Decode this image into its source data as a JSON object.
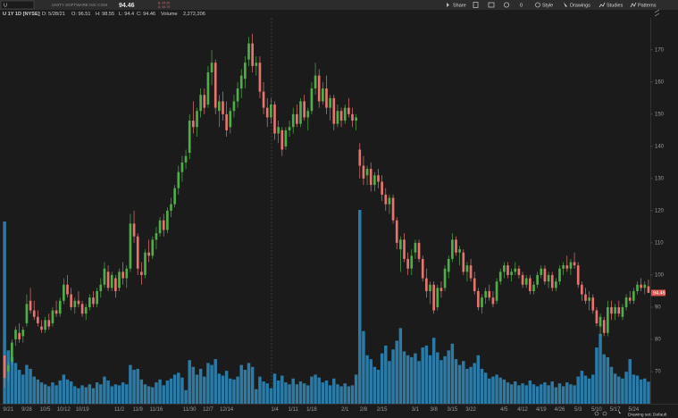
{
  "toolbar": {
    "symbol": "U",
    "company": "UNITY SOFTWARE INC COM",
    "bid": "B: 94.50",
    "ask": "A: 94.79",
    "count": "0",
    "buttons": [
      "Share",
      "Style",
      "Drawings",
      "Studies",
      "Patterns"
    ]
  },
  "footer": "Drawing set: Default",
  "chart_data": {
    "type": "candlestick",
    "title": "U 1Y 1D [NYSE]",
    "info": [
      "D: 5/28/21",
      "O: 96.51",
      "H: 98.55",
      "L: 94.4",
      "C: 94.46"
    ],
    "volume_label": "Volume",
    "volume_text": "2,272,206",
    "categories": [
      null,
      "9/21",
      null,
      null,
      null,
      null,
      "9/28",
      null,
      null,
      null,
      null,
      "10/5",
      null,
      null,
      null,
      null,
      "10/12",
      null,
      null,
      null,
      null,
      "10/19",
      null,
      null,
      null,
      null,
      null,
      null,
      null,
      null,
      null,
      "11/2",
      null,
      null,
      null,
      null,
      "11/9",
      null,
      null,
      null,
      null,
      "11/16",
      null,
      null,
      null,
      null,
      null,
      null,
      null,
      null,
      "11/30",
      null,
      null,
      null,
      null,
      "12/7",
      null,
      null,
      null,
      null,
      "12/14",
      null,
      null,
      null,
      null,
      null,
      null,
      null,
      null,
      null,
      null,
      null,
      null,
      "1/4",
      null,
      null,
      null,
      null,
      "1/11",
      null,
      null,
      null,
      null,
      "1/18",
      null,
      null,
      null,
      null,
      null,
      null,
      null,
      null,
      "2/1",
      null,
      null,
      null,
      null,
      "2/8",
      null,
      null,
      null,
      null,
      "2/15",
      null,
      null,
      null,
      null,
      null,
      null,
      null,
      null,
      "3/1",
      null,
      null,
      null,
      null,
      "3/8",
      null,
      null,
      null,
      null,
      "3/15",
      null,
      null,
      null,
      null,
      "3/22",
      null,
      null,
      null,
      null,
      null,
      null,
      null,
      null,
      "4/5",
      null,
      null,
      null,
      null,
      "4/12",
      null,
      null,
      null,
      null,
      "4/19",
      null,
      null,
      null,
      null,
      "4/26",
      null,
      null,
      null,
      null,
      "5/3",
      null,
      null,
      null,
      null,
      "5/10",
      null,
      null,
      null,
      null,
      "5/17",
      null,
      null,
      null,
      null,
      "5/24",
      null,
      null,
      null,
      null
    ],
    "open": [
      75,
      70,
      73,
      80,
      82,
      81,
      85,
      92,
      89,
      87,
      84,
      83,
      86,
      85,
      89,
      88,
      92,
      97,
      94,
      90,
      92,
      91,
      88,
      90,
      93,
      91,
      95,
      97,
      101,
      96,
      99,
      96,
      101,
      99,
      102,
      116,
      112,
      101,
      100,
      107,
      106,
      111,
      113,
      117,
      114,
      120,
      122,
      127,
      132,
      135,
      138,
      148,
      146,
      151,
      156,
      153,
      163,
      166,
      151,
      154,
      150,
      146,
      151,
      154,
      158,
      161,
      167,
      172,
      165,
      166,
      157,
      152,
      149,
      153,
      144,
      145,
      140,
      145,
      146,
      150,
      147,
      154,
      149,
      151,
      158,
      162,
      154,
      158,
      152,
      155,
      147,
      151,
      148,
      152,
      150,
      148,
      139,
      134,
      131,
      133,
      128,
      131,
      129,
      125,
      122,
      124,
      117,
      108,
      111,
      105,
      102,
      107,
      110,
      105,
      99,
      95,
      97,
      90,
      96,
      96,
      101,
      105,
      111,
      107,
      107,
      101,
      103,
      99,
      95,
      90,
      93,
      95,
      93,
      92,
      98,
      101,
      103,
      100,
      101,
      102,
      100,
      97,
      99,
      95,
      97,
      100,
      102,
      98,
      100,
      96,
      98,
      102,
      103,
      102,
      104,
      103,
      97,
      94,
      92,
      93,
      89,
      84,
      86,
      82,
      90,
      88,
      90,
      87,
      90,
      93,
      92,
      95,
      97,
      96,
      96.51
    ],
    "high": [
      75,
      73,
      80,
      84,
      85,
      84,
      94,
      96,
      92,
      89,
      86,
      87,
      88,
      90,
      92,
      93,
      99,
      100,
      96,
      93,
      95,
      92,
      91,
      94,
      95,
      96,
      99,
      104,
      103,
      101,
      100,
      102,
      104,
      103,
      119,
      120,
      113,
      104,
      108,
      111,
      112,
      115,
      118,
      119,
      121,
      124,
      128,
      134,
      137,
      139,
      150,
      154,
      152,
      158,
      158,
      165,
      170,
      167,
      156,
      157,
      154,
      152,
      156,
      160,
      164,
      168,
      174,
      175,
      168,
      168,
      160,
      155,
      155,
      154,
      148,
      146,
      146,
      148,
      152,
      153,
      155,
      156,
      152,
      160,
      166,
      164,
      160,
      162,
      156,
      156,
      153,
      152,
      153,
      155,
      152,
      150,
      141,
      137,
      134,
      135,
      132,
      133,
      131,
      127,
      125,
      125,
      118,
      112,
      113,
      107,
      108,
      111,
      111,
      106,
      102,
      98,
      98,
      97,
      98,
      103,
      106,
      113,
      112,
      109,
      108,
      104,
      105,
      101,
      96,
      94,
      96,
      97,
      95,
      99,
      102,
      104,
      104,
      102,
      104,
      103,
      101,
      100,
      100,
      98,
      101,
      103,
      103,
      101,
      101,
      99,
      103,
      104,
      106,
      105,
      107,
      104,
      98,
      96,
      95,
      94,
      90,
      88,
      87,
      92,
      92,
      91,
      92,
      91,
      94,
      95,
      96,
      98,
      99,
      98,
      98.55
    ],
    "low": [
      65,
      67,
      72,
      78,
      79,
      79,
      84,
      88,
      86,
      84,
      82,
      82,
      83,
      84,
      87,
      87,
      91,
      93,
      89,
      88,
      90,
      87,
      86,
      89,
      90,
      90,
      93,
      96,
      95,
      95,
      93,
      95,
      97,
      96,
      101,
      110,
      100,
      97,
      99,
      104,
      105,
      108,
      112,
      112,
      113,
      118,
      121,
      125,
      129,
      133,
      136,
      144,
      143,
      149,
      150,
      152,
      159,
      150,
      146,
      148,
      143,
      144,
      149,
      152,
      155,
      158,
      165,
      163,
      162,
      155,
      150,
      146,
      147,
      142,
      141,
      137,
      139,
      143,
      144,
      146,
      146,
      148,
      145,
      150,
      156,
      152,
      153,
      150,
      148,
      145,
      146,
      146,
      147,
      149,
      146,
      145,
      130,
      128,
      128,
      126,
      126,
      127,
      123,
      120,
      119,
      116,
      108,
      101,
      104,
      100,
      100,
      105,
      104,
      98,
      93,
      91,
      88,
      89,
      93,
      95,
      99,
      104,
      106,
      103,
      100,
      98,
      98,
      94,
      89,
      88,
      91,
      92,
      90,
      91,
      97,
      99,
      99,
      98,
      100,
      99,
      96,
      96,
      94,
      94,
      96,
      99,
      97,
      96,
      95,
      95,
      97,
      100,
      101,
      100,
      102,
      96,
      92,
      91,
      89,
      88,
      84,
      81,
      81,
      81,
      86,
      86,
      87,
      86,
      89,
      91,
      91,
      94,
      95,
      94,
      94.4
    ],
    "close": [
      68,
      72,
      79,
      83,
      80,
      83,
      91,
      89,
      87,
      85,
      83,
      86,
      84,
      89,
      88,
      92,
      97,
      94,
      90,
      92,
      91,
      88,
      90,
      93,
      91,
      95,
      97,
      102,
      96,
      100,
      95,
      101,
      99,
      102,
      116,
      112,
      102,
      100,
      107,
      106,
      111,
      113,
      117,
      114,
      120,
      122,
      127,
      132,
      135,
      137,
      148,
      146,
      151,
      156,
      152,
      163,
      166,
      152,
      154,
      150,
      145,
      151,
      154,
      158,
      162,
      166,
      172,
      165,
      166,
      157,
      152,
      149,
      153,
      144,
      146,
      139,
      145,
      146,
      150,
      147,
      154,
      149,
      151,
      158,
      162,
      154,
      158,
      152,
      155,
      147,
      151,
      148,
      152,
      150,
      148,
      149,
      134,
      130,
      133,
      128,
      131,
      129,
      125,
      122,
      124,
      117,
      110,
      111,
      105,
      102,
      106,
      110,
      105,
      99,
      95,
      97,
      89,
      96,
      95,
      102,
      105,
      111,
      107,
      108,
      101,
      103,
      99,
      95,
      90,
      93,
      95,
      93,
      91,
      98,
      101,
      103,
      100,
      101,
      102,
      100,
      97,
      99,
      95,
      97,
      100,
      102,
      98,
      100,
      96,
      98,
      102,
      103,
      102,
      104,
      103,
      97,
      94,
      92,
      93,
      89,
      85,
      87,
      82,
      90,
      88,
      90,
      88,
      90,
      93,
      92,
      95,
      97,
      96,
      97,
      94.46
    ],
    "volume": [
      18.8,
      5.5,
      4.8,
      4.2,
      3.5,
      3.0,
      4.0,
      3.6,
      2.8,
      2.5,
      2.2,
      2.0,
      1.8,
      2.2,
      1.9,
      2.4,
      3.0,
      2.5,
      2.3,
      1.8,
      1.6,
      1.9,
      1.7,
      2.0,
      1.6,
      2.2,
      2.0,
      2.8,
      2.4,
      1.8,
      2.0,
      1.9,
      2.2,
      2.0,
      4.0,
      3.5,
      3.6,
      2.5,
      2.0,
      1.8,
      1.7,
      2.2,
      2.5,
      1.9,
      2.4,
      2.6,
      3.0,
      3.2,
      2.7,
      1.4,
      4.5,
      3.8,
      3.0,
      3.6,
      2.8,
      4.2,
      4.0,
      4.6,
      3.1,
      2.9,
      3.4,
      2.6,
      2.5,
      2.8,
      4.0,
      3.5,
      4.2,
      3.8,
      1.5,
      2.8,
      2.3,
      2.1,
      1.6,
      3.1,
      2.4,
      2.9,
      2.2,
      2.0,
      2.6,
      2.0,
      2.3,
      2.1,
      1.9,
      2.8,
      3.0,
      2.7,
      2.2,
      2.4,
      1.9,
      2.6,
      2.0,
      1.8,
      2.1,
      1.8,
      1.9,
      3.0,
      20.0,
      7.5,
      5.0,
      4.6,
      3.8,
      3.5,
      5.2,
      6.0,
      4.4,
      5.6,
      6.5,
      7.8,
      5.4,
      5.0,
      4.8,
      5.2,
      4.4,
      5.8,
      6.0,
      5.0,
      6.8,
      5.3,
      4.5,
      4.9,
      5.5,
      6.2,
      4.6,
      4.0,
      4.4,
      3.6,
      3.8,
      4.2,
      5.0,
      3.6,
      3.2,
      2.6,
      2.8,
      3.0,
      2.7,
      2.5,
      2.2,
      2.0,
      2.3,
      1.9,
      2.1,
      1.9,
      2.4,
      2.0,
      1.8,
      2.0,
      2.2,
      1.9,
      2.3,
      1.7,
      2.1,
      1.8,
      2.2,
      2.0,
      1.9,
      2.8,
      3.4,
      2.9,
      2.6,
      3.0,
      5.8,
      7.2,
      5.1,
      4.8,
      3.8,
      3.1,
      2.8,
      2.6,
      3.3,
      4.6,
      3.0,
      2.9,
      2.5,
      2.6,
      2.272206
    ],
    "up_color": "#4fae4a",
    "down_color": "#e8746f",
    "volume_color": "#2b7ba6",
    "last_color": "#d9534f",
    "ylim": [
      60,
      180.5
    ],
    "yticks": [
      70,
      80,
      90,
      100,
      110,
      120,
      130,
      140,
      150,
      160,
      170
    ],
    "y2lim": [
      0,
      40
    ]
  }
}
